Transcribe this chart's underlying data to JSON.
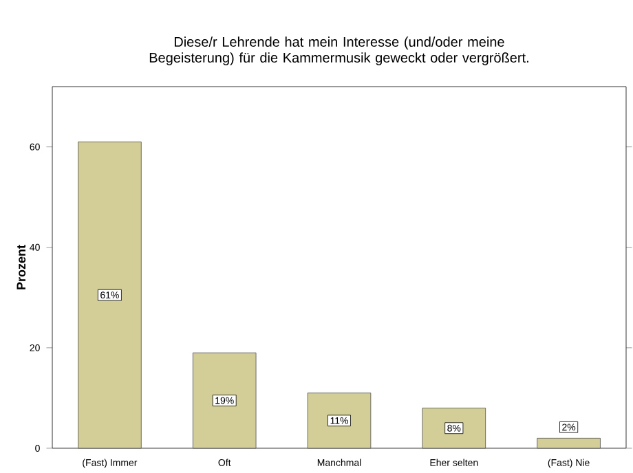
{
  "chart_data": {
    "type": "bar",
    "title": "Diese/r Lehrende hat mein Interesse (und/oder meine Begeisterung) für die Kammermusik  geweckt oder vergrößert.",
    "ylabel": "Prozent",
    "categories": [
      "(Fast) Immer",
      "Oft",
      "Manchmal",
      "Eher selten",
      "(Fast) Nie"
    ],
    "values": [
      61,
      19,
      11,
      8,
      2
    ],
    "value_labels": [
      "61%",
      "19%",
      "11%",
      "8%",
      "2%"
    ],
    "color": "#d3ce97",
    "ylim": [
      0,
      72
    ],
    "yticks": [
      0,
      20,
      40,
      60
    ],
    "grid": false
  }
}
